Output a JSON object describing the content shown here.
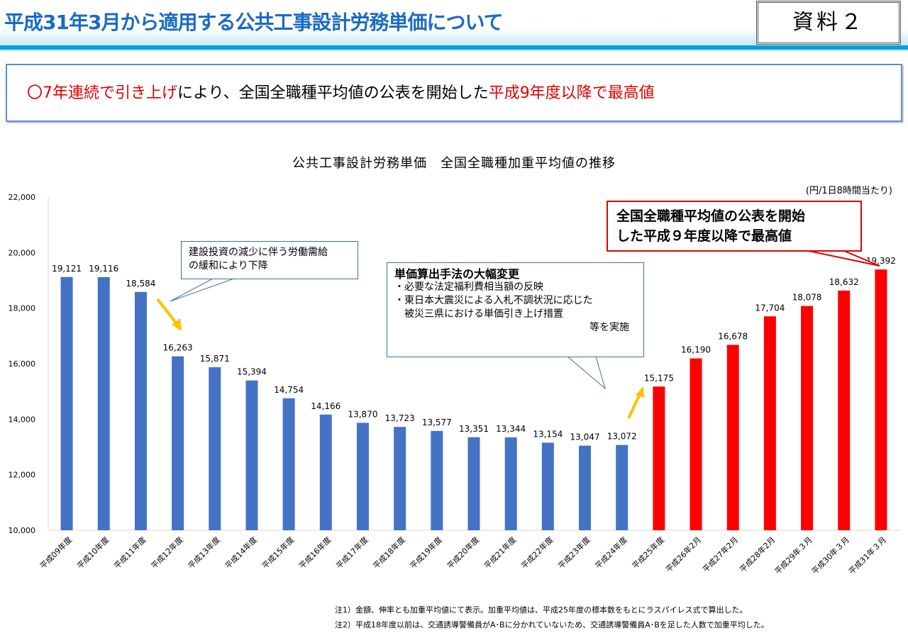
{
  "header": {
    "title": "平成31年3月から適用する公共工事設計労務単価について",
    "doc_label": "資料２"
  },
  "lead": {
    "part1": "〇7年連続で引き上げ",
    "part2": "により、全国全職種平均値の公表を開始した",
    "part3": "平成9年度以降で最高値"
  },
  "chart_data": {
    "type": "bar",
    "title": "公共工事設計労務単価　全国全職種加重平均値の推移",
    "unit": "(円/1日8時間当たり)",
    "ylim": [
      10000,
      22000
    ],
    "yticks": [
      "10,000",
      "12,000",
      "14,000",
      "16,000",
      "18,000",
      "20,000",
      "22,000"
    ],
    "categories": [
      "平成09年度",
      "平成10年度",
      "平成11年度",
      "平成12年度",
      "平成13年度",
      "平成14年度",
      "平成15年度",
      "平成16年度",
      "平成17年度",
      "平成18年度",
      "平成19年度",
      "平成20年度",
      "平成21年度",
      "平成22年度",
      "平成23年度",
      "平成24年度",
      "平成25年度",
      "平成26年2月",
      "平成27年2月",
      "平成28年2月",
      "平成29年３月",
      "平成30年３月",
      "平成31年３月"
    ],
    "values": [
      19121,
      19116,
      18584,
      16263,
      15871,
      15394,
      14754,
      14166,
      13870,
      13723,
      13577,
      13351,
      13344,
      13154,
      13047,
      13072,
      15175,
      16190,
      16678,
      17704,
      18078,
      18632,
      19392
    ],
    "labels": [
      "19,121",
      "19,116",
      "18,584",
      "16,263",
      "15,871",
      "15,394",
      "14,754",
      "14,166",
      "13,870",
      "13,723",
      "13,577",
      "13,351",
      "13,344",
      "13,154",
      "13,047",
      "13,072",
      "15,175",
      "16,190",
      "16,678",
      "17,704",
      "18,078",
      "18,632",
      "19,392"
    ],
    "colors": {
      "before": "#4472c4",
      "after": "#ff0000",
      "arrow": "#ffc000"
    },
    "red_from_index": 16,
    "annotations": {
      "decline": [
        "建設投資の減少に伴う労働需給",
        "の緩和により下降"
      ],
      "method": {
        "title": "単価算出手法の大幅変更",
        "lines": [
          "・必要な法定福利費相当額の反映",
          "・東日本大震災による入札不調状況に応じた",
          "　被災三県における単価引き上げ措置"
        ],
        "tail": "等を実施"
      },
      "highest": [
        "全国全職種平均値の公表を開始",
        "した平成９年度以降で最高値"
      ]
    }
  },
  "notes": [
    "注1）金額、伸率とも加重平均値にて表示。加重平均値は、平成25年度の標本数をもとにラスパイレス式で算出した。",
    "注2）平成18年度以前は、交通誘導警備員がA･Bに分かれていないため、交通誘導警備員A･Bを足した人数で加重平均した。"
  ]
}
